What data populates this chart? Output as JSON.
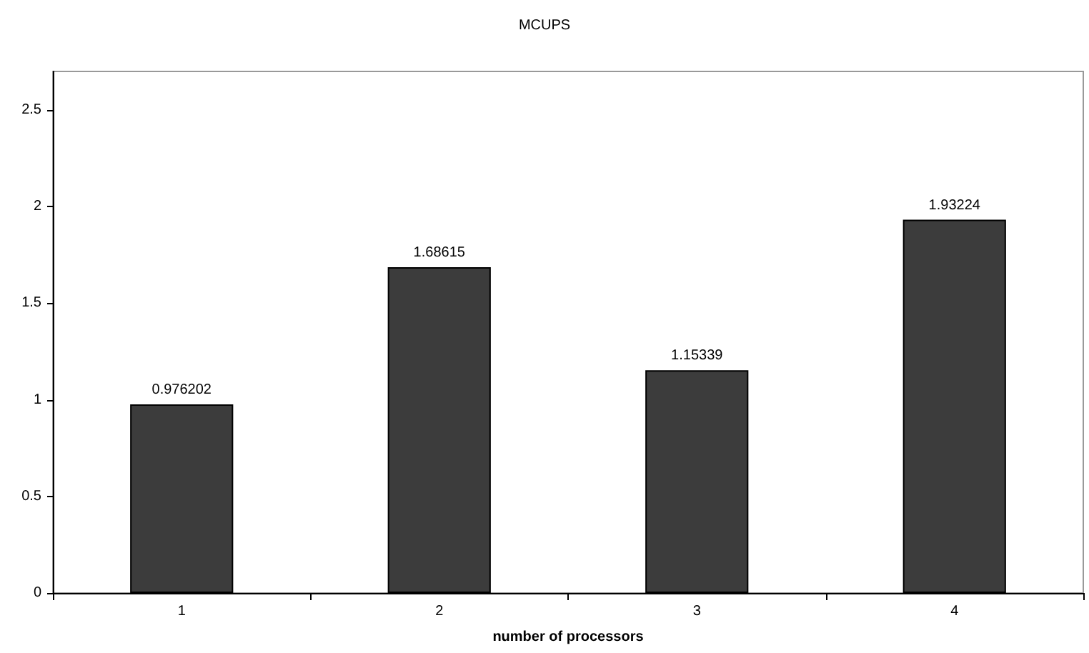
{
  "chart_data": {
    "type": "bar",
    "title": "MCUPS",
    "xlabel": "number of processors",
    "categories": [
      "1",
      "2",
      "3",
      "4"
    ],
    "values": [
      0.976202,
      1.68615,
      1.15339,
      1.93224
    ],
    "color": "#3c3c3c",
    "ylim": [
      0,
      2.7
    ],
    "yticks": [
      0,
      0.5,
      1,
      1.5,
      2,
      2.5
    ],
    "data_labels": true
  }
}
